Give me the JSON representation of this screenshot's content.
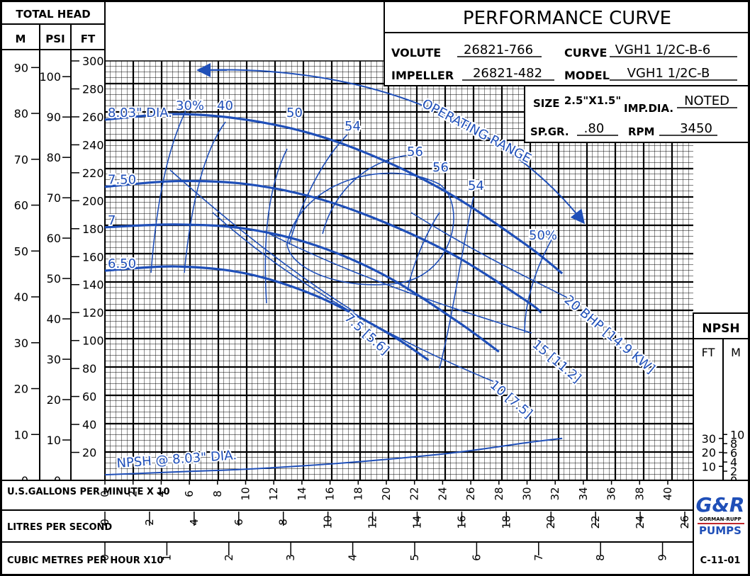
{
  "header": {
    "title": "PERFORMANCE CURVE",
    "volute_label": "VOLUTE",
    "volute": "26821-766",
    "curve_label": "CURVE",
    "curve": "VGH1 1/2C-B-6",
    "impeller_label": "IMPELLER",
    "impeller": "26821-482",
    "model_label": "MODEL",
    "model": "VGH1 1/2C-B",
    "size_label": "SIZE",
    "size": "2.5\"X1.5\"",
    "impdia_label": "IMP.DIA.",
    "impdia": "NOTED",
    "spgr_label": "SP.GR.",
    "spgr": ".80",
    "rpm_label": "RPM",
    "rpm": "3450"
  },
  "head_box": {
    "title": "TOTAL HEAD",
    "m": "M",
    "psi": "PSI",
    "ft": "FT"
  },
  "npsh_box": {
    "title": "NPSH",
    "ft": "FT",
    "m": "M"
  },
  "x_labels": {
    "gpm": "U.S.GALLONS PER MINUTE X 10",
    "lps": "LITRES PER SECOND",
    "cmh": "CUBIC METRES PER HOUR X10"
  },
  "logo": {
    "text": "G&R",
    "sub": "GORMAN-RUPP",
    "pumps": "PUMPS"
  },
  "drawing_no": "C-11-01",
  "colors": {
    "curve": "#1f4fb8",
    "grid": "#000000"
  },
  "chart_data": {
    "type": "line",
    "x_unit": "U.S. GPM x 10",
    "xlim": [
      0,
      42
    ],
    "ylim": [
      0,
      300
    ],
    "grid": true,
    "ticks": {
      "ft": [
        20,
        40,
        60,
        80,
        100,
        120,
        140,
        160,
        180,
        200,
        220,
        240,
        260,
        280,
        300
      ],
      "m": [
        0,
        10,
        20,
        30,
        40,
        50,
        60,
        70,
        80,
        90
      ],
      "psi": [
        0,
        10,
        20,
        30,
        40,
        50,
        60,
        70,
        80,
        90,
        100
      ],
      "gpm": [
        0,
        2,
        4,
        6,
        8,
        10,
        12,
        14,
        16,
        18,
        20,
        22,
        24,
        26,
        28,
        30,
        32,
        34,
        36,
        38,
        40
      ],
      "lps": [
        0,
        2,
        4,
        6,
        8,
        10,
        12,
        14,
        16,
        18,
        20,
        22,
        24,
        26
      ],
      "cmh": [
        0,
        1,
        2,
        3,
        4,
        5,
        6,
        7,
        8,
        9
      ],
      "npsh_ft": [
        10,
        20,
        30
      ],
      "npsh_m": [
        0,
        2,
        4,
        6,
        8,
        10
      ]
    },
    "series": [
      {
        "name": "8.03\" DIA.",
        "x": [
          0,
          5,
          10,
          15,
          20,
          25,
          30,
          32.5
        ],
        "y": [
          258,
          262,
          258,
          247,
          228,
          202,
          168,
          148
        ]
      },
      {
        "name": "7.50",
        "x": [
          0,
          5,
          10,
          15,
          20,
          25,
          30,
          31
        ],
        "y": [
          210,
          214,
          212,
          202,
          184,
          160,
          128,
          120
        ]
      },
      {
        "name": "7",
        "x": [
          0,
          5,
          10,
          15,
          20,
          25,
          28
        ],
        "y": [
          181,
          183,
          180,
          168,
          146,
          114,
          92
        ]
      },
      {
        "name": "6.50",
        "x": [
          0,
          5,
          10,
          15,
          20,
          23
        ],
        "y": [
          150,
          153,
          148,
          132,
          106,
          86
        ]
      }
    ],
    "npsh": {
      "name": "NPSH @ 8.03\" DIA.",
      "x": [
        0,
        5,
        10,
        15,
        20,
        25,
        30,
        32.5
      ],
      "y_ft": [
        4,
        6,
        8,
        11,
        15,
        20,
        27,
        30
      ]
    },
    "efficiency_labels": [
      "30%",
      "40",
      "50",
      "54",
      "56",
      "56",
      "54",
      "50%"
    ],
    "bhp_labels": [
      "7.5 [5.6]",
      "10 [7.5]",
      "15 [11.2]",
      "20 BHP [14.9 KW]"
    ],
    "annotation": "OPERATING RANGE"
  }
}
